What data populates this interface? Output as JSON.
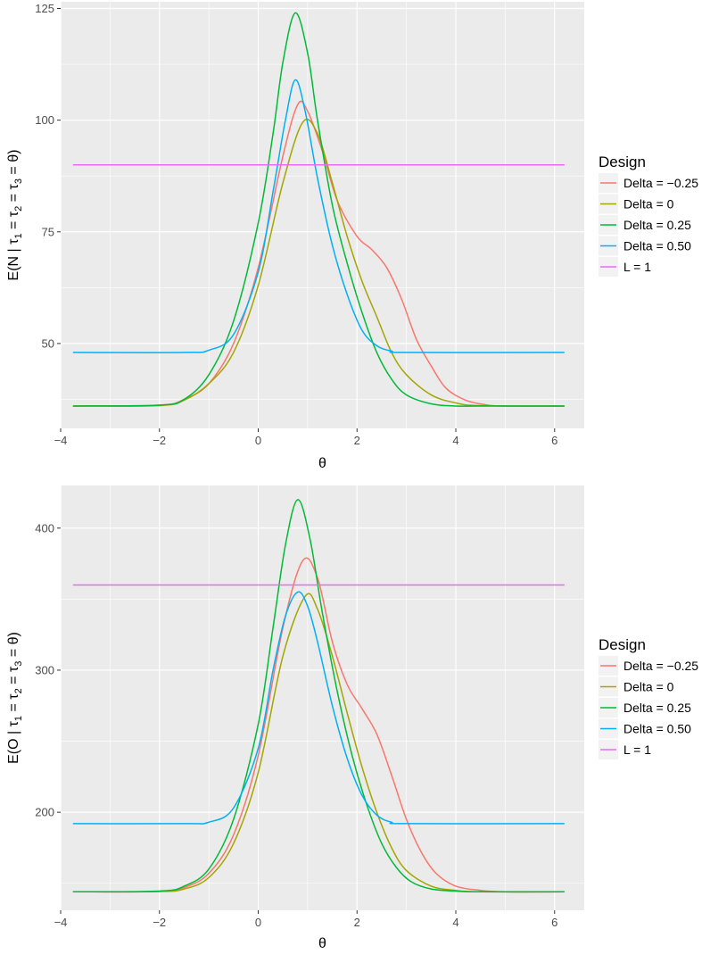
{
  "chart_data": [
    {
      "type": "line",
      "ylabel_main": "E(N | ",
      "ylabel_tau": "τ",
      "ylabel_s1": "1",
      "ylabel_eq": " = ",
      "ylabel_s2": "2",
      "ylabel_s3": "3",
      "ylabel_theta": "θ",
      "ylabel_close": ")",
      "xlabel": "θ",
      "xlim": [
        -4,
        6.6
      ],
      "ylim": [
        31,
        126.5
      ],
      "xticks": [
        -4,
        -2,
        0,
        2,
        4,
        6
      ],
      "xtick_labels": [
        "−4",
        "−2",
        "0",
        "2",
        "4",
        "6"
      ],
      "yticks": [
        50,
        75,
        100,
        125
      ],
      "ytick_labels": [
        "50",
        "75",
        "100",
        "125"
      ],
      "legend_title": "Design",
      "series": [
        {
          "name": "Delta = −0.25",
          "color": "#F8766D",
          "x": [
            -3.75,
            -2.0,
            -1.5,
            -1.0,
            -0.5,
            0.0,
            0.5,
            0.8,
            1.0,
            1.3,
            1.6,
            2.0,
            2.3,
            2.6,
            2.9,
            3.2,
            3.5,
            3.8,
            4.2,
            4.6,
            5.0,
            6.2
          ],
          "y": [
            36,
            36.2,
            37.5,
            41,
            50,
            67,
            92,
            103.5,
            102,
            93,
            82,
            74,
            71,
            67,
            60,
            51,
            45,
            40,
            37.3,
            36.3,
            36,
            36
          ]
        },
        {
          "name": "Delta =  0",
          "color": "#A3A500",
          "x": [
            -3.75,
            -2.0,
            -1.5,
            -1.0,
            -0.5,
            0.0,
            0.5,
            0.9,
            1.2,
            1.5,
            1.8,
            2.1,
            2.4,
            2.7,
            3.0,
            3.5,
            4.0,
            4.5,
            6.2
          ],
          "y": [
            36,
            36.1,
            37.3,
            41,
            48,
            63,
            86,
            99.5,
            97,
            86,
            74,
            64,
            56,
            48,
            43,
            38.5,
            36.7,
            36.1,
            36
          ]
        },
        {
          "name": "Delta =  0.25",
          "color": "#00BA38",
          "x": [
            -3.75,
            -2.0,
            -1.5,
            -1.0,
            -0.5,
            0.0,
            0.3,
            0.5,
            0.75,
            1.0,
            1.2,
            1.5,
            1.8,
            2.1,
            2.4,
            2.7,
            3.0,
            3.5,
            4.0,
            4.5,
            6.2
          ],
          "y": [
            36,
            36.2,
            37.5,
            43,
            55,
            77,
            97,
            113,
            124,
            115,
            100,
            81,
            68,
            57,
            48,
            42,
            38.5,
            36.5,
            36,
            36,
            36
          ]
        },
        {
          "name": "Delta =  0.50",
          "color": "#00B0F6",
          "x": [
            -3.75,
            -1.5,
            -1.0,
            -0.5,
            0.0,
            0.3,
            0.55,
            0.75,
            0.95,
            1.2,
            1.5,
            1.8,
            2.1,
            2.4,
            2.7,
            3.0,
            6.2
          ],
          "y": [
            48,
            48,
            48.5,
            52,
            66,
            84,
            100,
            109,
            102,
            87,
            72,
            61,
            53,
            49.5,
            48.3,
            48,
            48
          ]
        },
        {
          "name": "L = 1",
          "color": "#E76BF3",
          "x": [
            -3.75,
            6.2
          ],
          "y": [
            90,
            90
          ]
        }
      ]
    },
    {
      "type": "line",
      "ylabel_main": "E(O | ",
      "ylabel_tau": "τ",
      "ylabel_s1": "1",
      "ylabel_eq": " = ",
      "ylabel_s2": "2",
      "ylabel_s3": "3",
      "ylabel_theta": "θ",
      "ylabel_close": ")",
      "xlabel": "θ",
      "xlim": [
        -4,
        6.6
      ],
      "ylim": [
        131,
        430
      ],
      "xticks": [
        -4,
        -2,
        0,
        2,
        4,
        6
      ],
      "xtick_labels": [
        "−4",
        "−2",
        "0",
        "2",
        "4",
        "6"
      ],
      "yticks": [
        200,
        300,
        400
      ],
      "ytick_labels": [
        "200",
        "300",
        "400"
      ],
      "legend_title": "Design",
      "series": [
        {
          "name": "Delta = −0.25",
          "color": "#F8766D",
          "x": [
            -3.75,
            -2.0,
            -1.5,
            -1.0,
            -0.5,
            0.0,
            0.5,
            0.9,
            1.2,
            1.5,
            1.8,
            2.1,
            2.4,
            2.7,
            3.0,
            3.3,
            3.6,
            4.0,
            4.5,
            5.0,
            6.2
          ],
          "y": [
            144,
            144.3,
            147,
            157,
            184,
            240,
            330,
            377,
            365,
            320,
            290,
            273,
            255,
            226,
            195,
            172,
            157,
            148,
            145,
            144,
            144
          ]
        },
        {
          "name": "Delta =  0",
          "color": "#A3A500",
          "x": [
            -3.75,
            -2.0,
            -1.5,
            -1.0,
            -0.5,
            0.0,
            0.5,
            0.95,
            1.2,
            1.5,
            1.8,
            2.1,
            2.4,
            2.7,
            3.0,
            3.5,
            4.0,
            4.5,
            6.2
          ],
          "y": [
            144,
            144.2,
            146,
            154,
            178,
            228,
            310,
            352,
            343,
            310,
            270,
            232,
            200,
            175,
            159,
            148,
            145,
            144,
            144
          ]
        },
        {
          "name": "Delta =  0.25",
          "color": "#00BA38",
          "x": [
            -3.75,
            -2.0,
            -1.5,
            -1.0,
            -0.5,
            0.0,
            0.3,
            0.55,
            0.8,
            1.05,
            1.3,
            1.6,
            1.9,
            2.2,
            2.5,
            2.8,
            3.1,
            3.5,
            4.0,
            4.5,
            6.2
          ],
          "y": [
            144,
            144.5,
            148,
            160,
            195,
            262,
            330,
            388,
            420,
            392,
            340,
            285,
            240,
            205,
            178,
            161,
            151,
            146,
            144.5,
            144,
            144
          ]
        },
        {
          "name": "Delta =  0.50",
          "color": "#00B0F6",
          "x": [
            -3.75,
            -1.5,
            -1.0,
            -0.5,
            0.0,
            0.3,
            0.55,
            0.8,
            1.0,
            1.2,
            1.5,
            1.8,
            2.1,
            2.4,
            2.7,
            3.0,
            6.2
          ],
          "y": [
            192,
            192,
            193,
            203,
            245,
            300,
            338,
            355,
            345,
            320,
            275,
            238,
            212,
            198,
            193,
            192,
            192
          ]
        },
        {
          "name": "L = 1",
          "color": "#E76BF3",
          "x": [
            -3.75,
            6.2
          ],
          "y": [
            360,
            360
          ]
        }
      ]
    }
  ]
}
